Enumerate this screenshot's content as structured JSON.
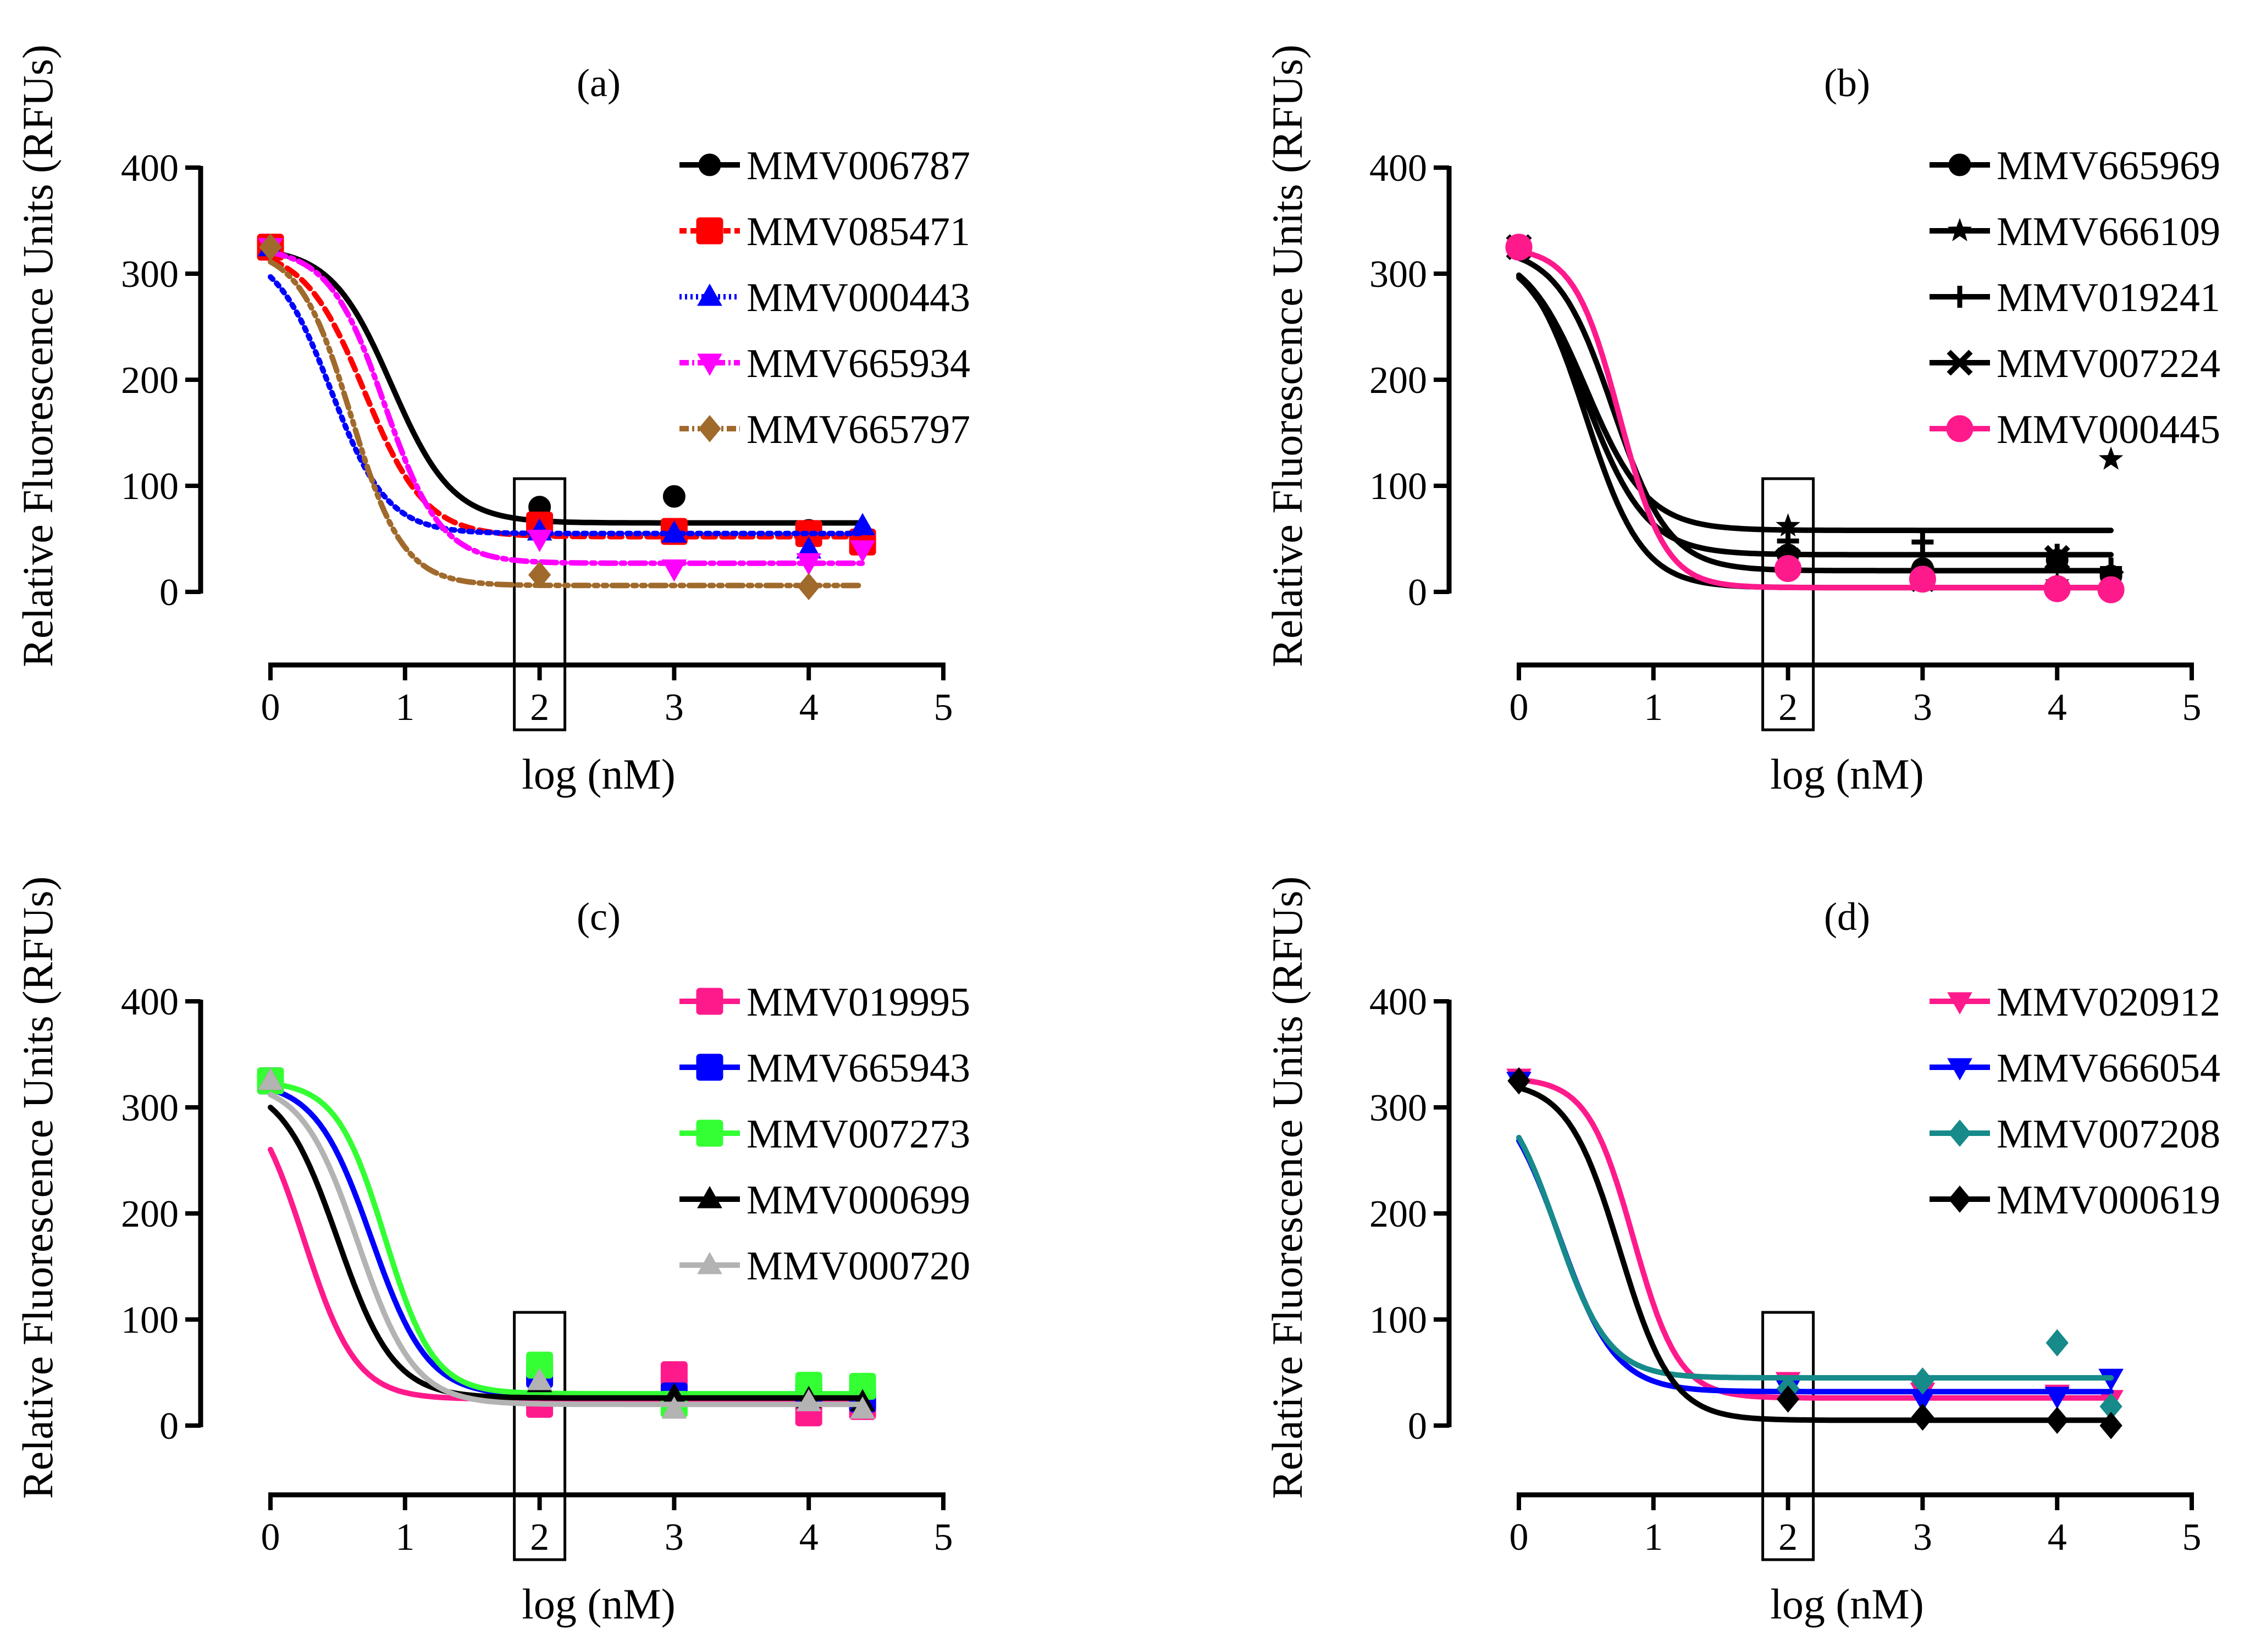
{
  "chart_data": [
    {
      "type": "line",
      "panel": "a",
      "title": "(a)",
      "xlabel": "log (nM)",
      "ylabel": "Relative Fluorescence Units (RFUs)",
      "xlim": [
        0,
        5
      ],
      "ylim": [
        0,
        400
      ],
      "xticks": [
        "0",
        "1",
        "2",
        "3",
        "4",
        "5"
      ],
      "yticks": [
        "0",
        "100",
        "200",
        "300",
        "400"
      ],
      "highlight_x": 2,
      "series": [
        {
          "name": "MMV006787",
          "color": "#000000",
          "marker": "circle",
          "dash": "",
          "x": [
            0,
            2,
            3,
            4,
            4.4
          ],
          "y": [
            325,
            80,
            90,
            58,
            52
          ],
          "fit": {
            "top": 325,
            "bottom": 65,
            "ec50": 0.9,
            "hill": 1.2
          }
        },
        {
          "name": "MMV085471",
          "color": "#ff0000",
          "marker": "square",
          "dash": "22 12",
          "x": [
            0,
            2,
            3,
            4,
            4.4
          ],
          "y": [
            325,
            63,
            57,
            55,
            47
          ],
          "fit": {
            "top": 325,
            "bottom": 52,
            "ec50": 0.7,
            "hill": 1.2
          }
        },
        {
          "name": "MMV000443",
          "color": "#0000ff",
          "marker": "triangle-up",
          "dash": "6 10",
          "x": [
            0,
            2,
            3,
            4,
            4.4
          ],
          "y": [
            325,
            57,
            55,
            40,
            62
          ],
          "fit": {
            "top": 325,
            "bottom": 55,
            "ec50": 0.45,
            "hill": 1.3
          }
        },
        {
          "name": "MMV665934",
          "color": "#ff00ff",
          "marker": "triangle-down",
          "dash": "28 10 6 10",
          "x": [
            0,
            2,
            3,
            4,
            4.4
          ],
          "y": [
            325,
            50,
            22,
            28,
            40
          ],
          "fit": {
            "top": 325,
            "bottom": 27,
            "ec50": 0.85,
            "hill": 1.3
          }
        },
        {
          "name": "MMV665797",
          "color": "#a06a2c",
          "marker": "diamond",
          "dash": "28 10 6 10 6 10",
          "x": [
            0,
            2,
            4
          ],
          "y": [
            325,
            16,
            5
          ],
          "fit": {
            "top": 325,
            "bottom": 6,
            "ec50": 0.6,
            "hill": 1.4
          }
        }
      ]
    },
    {
      "type": "line",
      "panel": "b",
      "title": "(b)",
      "xlabel": "log (nM)",
      "ylabel": "Relative Fluorescence Units (RFUs)",
      "xlim": [
        0,
        5
      ],
      "ylim": [
        0,
        400
      ],
      "xticks": [
        "0",
        "1",
        "2",
        "3",
        "4",
        "5"
      ],
      "yticks": [
        "0",
        "100",
        "200",
        "300",
        "400"
      ],
      "highlight_x": 2,
      "series": [
        {
          "name": "MMV665969",
          "color": "#000000",
          "marker": "circle",
          "dash": "",
          "x": [
            0,
            2,
            3,
            4,
            4.4
          ],
          "y": [
            325,
            35,
            22,
            30,
            15
          ],
          "fit": {
            "top": 325,
            "bottom": 20,
            "ec50": 0.7,
            "hill": 1.3
          }
        },
        {
          "name": "MMV666109",
          "color": "#000000",
          "marker": "star",
          "dash": "",
          "x": [
            0,
            2,
            3,
            4,
            4.4
          ],
          "y": [
            325,
            62,
            20,
            8,
            125
          ],
          "fit": {
            "top": 325,
            "bottom": 58,
            "ec50": 0.5,
            "hill": 1.2
          }
        },
        {
          "name": "MMV019241",
          "color": "#000000",
          "marker": "plus",
          "dash": "",
          "x": [
            0,
            2,
            3,
            4,
            4.4
          ],
          "y": [
            325,
            48,
            47,
            35,
            22
          ],
          "fit": {
            "top": 325,
            "bottom": 35,
            "ec50": 0.5,
            "hill": 1.2
          }
        },
        {
          "name": "MMV007224",
          "color": "#000000",
          "marker": "cross",
          "dash": "",
          "x": [
            0,
            2,
            3,
            4,
            4.4
          ],
          "y": [
            325,
            30,
            12,
            32,
            10
          ],
          "fit": {
            "top": 325,
            "bottom": 4,
            "ec50": 0.5,
            "hill": 1.3
          }
        },
        {
          "name": "MMV000445",
          "color": "#ff1a8c",
          "marker": "circle",
          "dash": "",
          "x": [
            0,
            2,
            3,
            4,
            4.4
          ],
          "y": [
            325,
            22,
            12,
            3,
            2
          ],
          "fit": {
            "top": 325,
            "bottom": 4,
            "ec50": 0.75,
            "hill": 1.6
          }
        }
      ]
    },
    {
      "type": "line",
      "panel": "c",
      "title": "(c)",
      "xlabel": "log (nM)",
      "ylabel": "Relative Fluorescence Units (RFUs)",
      "xlim": [
        0,
        5
      ],
      "ylim": [
        0,
        400
      ],
      "xticks": [
        "0",
        "1",
        "2",
        "3",
        "4",
        "5"
      ],
      "yticks": [
        "0",
        "100",
        "200",
        "300",
        "400"
      ],
      "highlight_x": 2,
      "series": [
        {
          "name": "MMV019995",
          "color": "#ff1a8c",
          "marker": "square",
          "dash": "",
          "x": [
            0,
            2,
            3,
            4,
            4.4
          ],
          "y": [
            325,
            20,
            48,
            12,
            18
          ],
          "fit": {
            "top": 325,
            "bottom": 25,
            "ec50": 0.25,
            "hill": 1.4
          }
        },
        {
          "name": "MMV665943",
          "color": "#0000ff",
          "marker": "square",
          "dash": "",
          "x": [
            0,
            2,
            3,
            4,
            4.4
          ],
          "y": [
            325,
            48,
            28,
            30,
            25
          ],
          "fit": {
            "top": 325,
            "bottom": 28,
            "ec50": 0.75,
            "hill": 1.3
          }
        },
        {
          "name": "MMV007273",
          "color": "#33ff33",
          "marker": "square",
          "dash": "",
          "x": [
            0,
            2,
            3,
            4,
            4.4
          ],
          "y": [
            325,
            57,
            20,
            38,
            37
          ],
          "fit": {
            "top": 325,
            "bottom": 30,
            "ec50": 0.85,
            "hill": 1.5
          }
        },
        {
          "name": "MMV000699",
          "color": "#000000",
          "marker": "triangle-up",
          "dash": "",
          "x": [
            0,
            2,
            3,
            4,
            4.4
          ],
          "y": [
            325,
            40,
            28,
            25,
            22
          ],
          "fit": {
            "top": 325,
            "bottom": 26,
            "ec50": 0.5,
            "hill": 1.3
          }
        },
        {
          "name": "MMV000720",
          "color": "#b3b3b3",
          "marker": "triangle-up",
          "dash": "",
          "x": [
            0,
            2,
            3,
            4,
            4.4
          ],
          "y": [
            325,
            42,
            15,
            22,
            15
          ],
          "fit": {
            "top": 325,
            "bottom": 20,
            "ec50": 0.65,
            "hill": 1.3
          }
        }
      ]
    },
    {
      "type": "line",
      "panel": "d",
      "title": "(d)",
      "xlabel": "log (nM)",
      "ylabel": "Relative Fluorescence Units (RFUs)",
      "xlim": [
        0,
        5
      ],
      "ylim": [
        0,
        400
      ],
      "xticks": [
        "0",
        "1",
        "2",
        "3",
        "4",
        "5"
      ],
      "yticks": [
        "0",
        "100",
        "200",
        "300",
        "400"
      ],
      "highlight_x": 2,
      "series": [
        {
          "name": "MMV020912",
          "color": "#ff1a8c",
          "marker": "triangle-down",
          "dash": "",
          "x": [
            0,
            2,
            3,
            4,
            4.4
          ],
          "y": [
            328,
            42,
            32,
            30,
            25
          ],
          "fit": {
            "top": 328,
            "bottom": 26,
            "ec50": 0.85,
            "hill": 1.6
          }
        },
        {
          "name": "MMV666054",
          "color": "#0000ff",
          "marker": "triangle-down",
          "dash": "",
          "x": [
            0,
            2,
            3,
            4,
            4.4
          ],
          "y": [
            325,
            35,
            25,
            28,
            45
          ],
          "fit": {
            "top": 325,
            "bottom": 32,
            "ec50": 0.3,
            "hill": 1.3
          }
        },
        {
          "name": "MMV007208",
          "color": "#178a8a",
          "marker": "diamond",
          "dash": "",
          "x": [
            0,
            2,
            3,
            4,
            4.4
          ],
          "y": [
            325,
            35,
            42,
            78,
            18
          ],
          "fit": {
            "top": 325,
            "bottom": 45,
            "ec50": 0.28,
            "hill": 1.4
          }
        },
        {
          "name": "MMV000619",
          "color": "#000000",
          "marker": "diamond",
          "dash": "",
          "x": [
            0,
            2,
            3,
            4,
            4.4
          ],
          "y": [
            325,
            25,
            8,
            5,
            0
          ],
          "fit": {
            "top": 325,
            "bottom": 5,
            "ec50": 0.75,
            "hill": 1.4
          }
        }
      ]
    }
  ]
}
